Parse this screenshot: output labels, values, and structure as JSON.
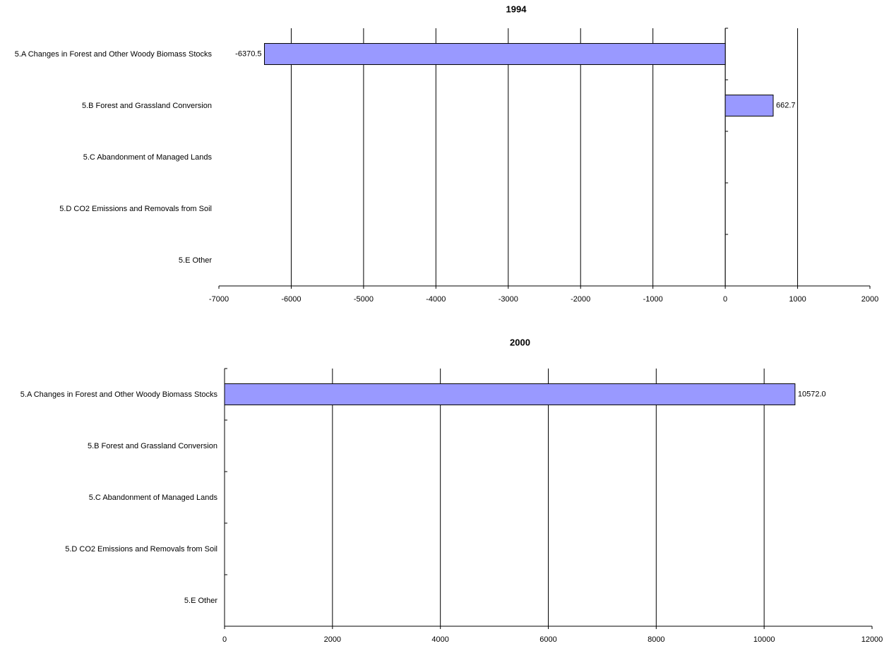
{
  "chart_data": [
    {
      "type": "barh",
      "title": "1994",
      "categories": [
        "5.A Changes in Forest and Other Woody Biomass Stocks",
        "5.B Forest and Grassland Conversion",
        "5.C Abandonment of Managed Lands",
        "5.D CO2 Emissions and Removals from Soil",
        "5.E Other"
      ],
      "values": [
        -6370.5,
        662.7,
        null,
        null,
        null
      ],
      "color": "#9999ff",
      "xlim": [
        -7000,
        2000
      ],
      "xticks": [
        -7000,
        -6000,
        -5000,
        -4000,
        -3000,
        -2000,
        -1000,
        0,
        1000,
        2000
      ],
      "grid": true
    },
    {
      "type": "barh",
      "title": "2000",
      "categories": [
        "5.A Changes in Forest and Other Woody Biomass Stocks",
        "5.B Forest and Grassland Conversion",
        "5.C Abandonment of Managed Lands",
        "5.D CO2 Emissions and Removals from Soil",
        "5.E Other"
      ],
      "values": [
        10572.0,
        null,
        null,
        null,
        null
      ],
      "value_labels": [
        "10572.0",
        null,
        null,
        null,
        null
      ],
      "color": "#9999ff",
      "xlim": [
        0,
        12000
      ],
      "xticks": [
        0,
        2000,
        4000,
        6000,
        8000,
        10000,
        12000
      ],
      "grid": true
    }
  ]
}
